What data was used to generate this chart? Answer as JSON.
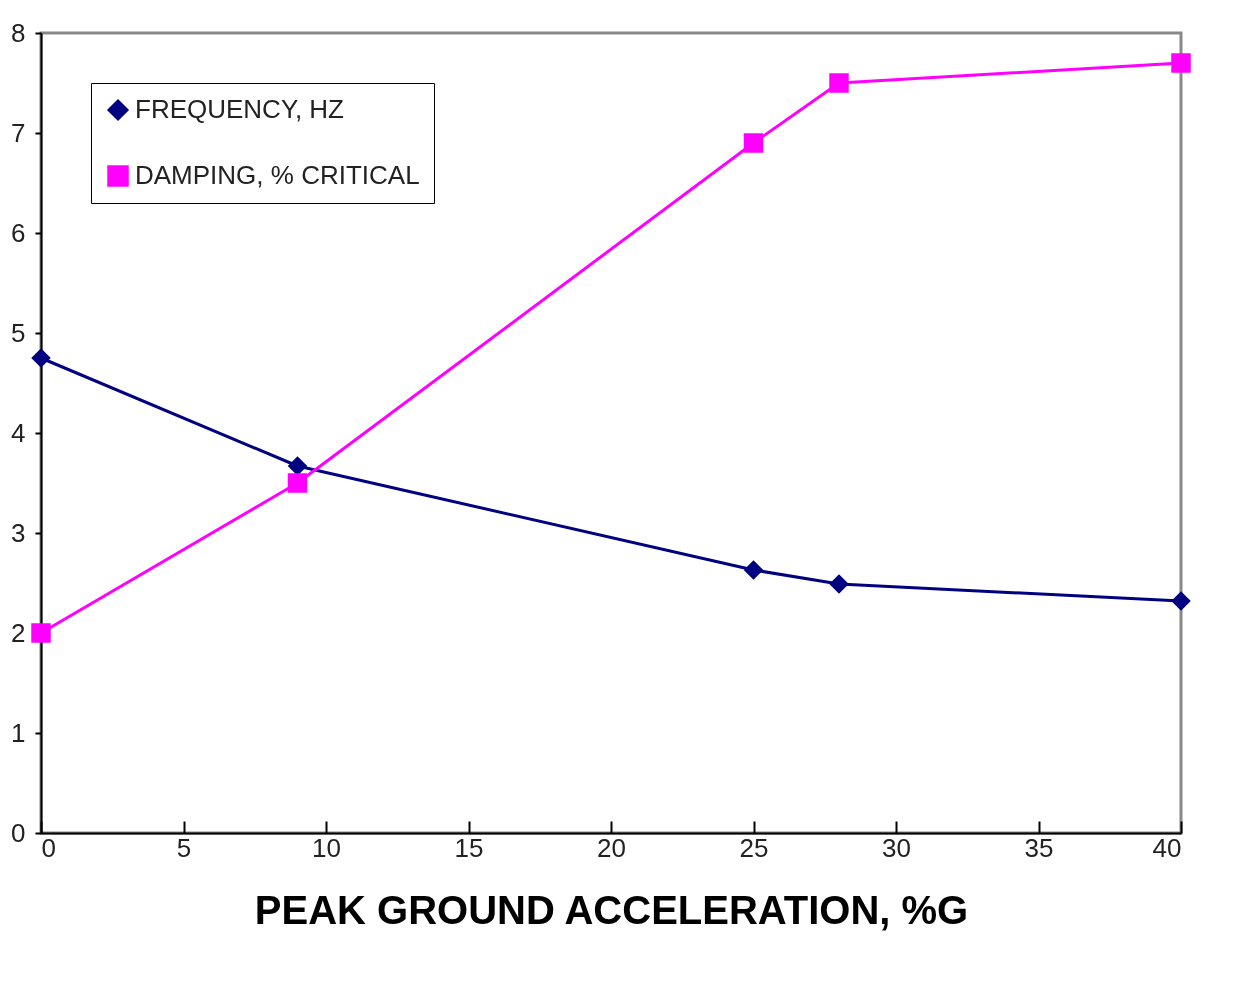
{
  "chart_data": {
    "type": "line",
    "xlabel": "PEAK GROUND ACCELERATION, %G",
    "x": [
      0,
      9,
      25,
      28,
      40
    ],
    "series": [
      {
        "name": "FREQUENCY, HZ",
        "color": "#000080",
        "marker": "diamond",
        "values": [
          4.75,
          3.67,
          2.63,
          2.49,
          2.32
        ]
      },
      {
        "name": "DAMPING, % CRITICAL",
        "color": "#ff00ff",
        "marker": "square",
        "values": [
          2.0,
          3.5,
          6.9,
          7.5,
          7.7
        ]
      }
    ],
    "xlim": [
      0,
      40
    ],
    "xticks": [
      0,
      5,
      10,
      15,
      20,
      25,
      30,
      35,
      40
    ],
    "ylim": [
      0,
      8
    ],
    "yticks": [
      0,
      1,
      2,
      3,
      4,
      5,
      6,
      7,
      8
    ],
    "grid": false,
    "legend": "top left",
    "line_style": "solid"
  }
}
